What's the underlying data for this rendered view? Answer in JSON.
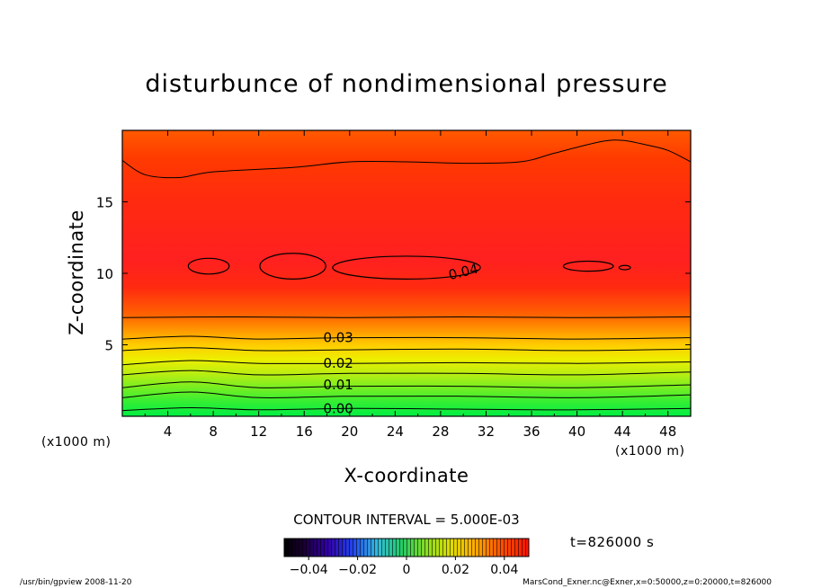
{
  "chart_data": {
    "type": "contour",
    "title": "disturbunce of nondimensional pressure",
    "xlabel": "X-coordinate",
    "ylabel": "Z-coordinate",
    "x_unit_left": "(x1000 m)",
    "x_unit_right": "(x1000 m)",
    "xlim": [
      0,
      50
    ],
    "ylim": [
      0,
      20
    ],
    "x_ticks": [
      4,
      8,
      12,
      16,
      20,
      24,
      28,
      32,
      36,
      40,
      44,
      48
    ],
    "y_ticks": [
      5,
      10,
      15
    ],
    "grid": false,
    "contour_interval_text": "CONTOUR INTERVAL = 5.000E-03",
    "time_label": "t=826000 s",
    "colorbar": {
      "min": -0.05,
      "max": 0.05,
      "tick_values": [
        -0.04,
        -0.02,
        0,
        0.02,
        0.04
      ],
      "tick_labels": [
        "−0.04",
        "−0.02",
        "0",
        "0.02",
        "0.04"
      ]
    },
    "contour_labels": [
      {
        "text": "0.00",
        "x": 19.0,
        "y": 0.55
      },
      {
        "text": "0.01",
        "x": 19.0,
        "y": 2.2
      },
      {
        "text": "0.02",
        "x": 19.0,
        "y": 3.7
      },
      {
        "text": "0.03",
        "x": 19.0,
        "y": 5.5
      },
      {
        "text": "0.04",
        "x": 30.0,
        "y": 10.1
      }
    ],
    "contours": [
      {
        "level": 0.0,
        "points": [
          [
            0,
            0.4
          ],
          [
            6,
            0.6
          ],
          [
            12,
            0.45
          ],
          [
            20,
            0.55
          ],
          [
            30,
            0.5
          ],
          [
            40,
            0.45
          ],
          [
            50,
            0.55
          ]
        ]
      },
      {
        "level": 0.005,
        "points": [
          [
            0,
            1.3
          ],
          [
            6,
            1.7
          ],
          [
            12,
            1.3
          ],
          [
            20,
            1.4
          ],
          [
            30,
            1.4
          ],
          [
            40,
            1.3
          ],
          [
            50,
            1.5
          ]
        ]
      },
      {
        "level": 0.01,
        "points": [
          [
            0,
            2.0
          ],
          [
            6,
            2.4
          ],
          [
            12,
            2.0
          ],
          [
            20,
            2.1
          ],
          [
            30,
            2.1
          ],
          [
            40,
            2.0
          ],
          [
            50,
            2.2
          ]
        ]
      },
      {
        "level": 0.015,
        "points": [
          [
            0,
            2.9
          ],
          [
            6,
            3.2
          ],
          [
            12,
            2.9
          ],
          [
            20,
            3.0
          ],
          [
            30,
            3.0
          ],
          [
            40,
            2.9
          ],
          [
            50,
            3.1
          ]
        ]
      },
      {
        "level": 0.02,
        "points": [
          [
            0,
            3.6
          ],
          [
            6,
            3.9
          ],
          [
            12,
            3.7
          ],
          [
            20,
            3.7
          ],
          [
            30,
            3.75
          ],
          [
            40,
            3.7
          ],
          [
            50,
            3.8
          ]
        ]
      },
      {
        "level": 0.025,
        "points": [
          [
            0,
            4.6
          ],
          [
            6,
            4.8
          ],
          [
            12,
            4.6
          ],
          [
            20,
            4.65
          ],
          [
            30,
            4.7
          ],
          [
            40,
            4.6
          ],
          [
            50,
            4.7
          ]
        ]
      },
      {
        "level": 0.03,
        "points": [
          [
            0,
            5.4
          ],
          [
            6,
            5.6
          ],
          [
            12,
            5.4
          ],
          [
            20,
            5.5
          ],
          [
            30,
            5.5
          ],
          [
            40,
            5.4
          ],
          [
            50,
            5.5
          ]
        ]
      },
      {
        "level": 0.035,
        "points": [
          [
            0,
            6.9
          ],
          [
            10,
            6.95
          ],
          [
            20,
            6.9
          ],
          [
            30,
            6.95
          ],
          [
            40,
            6.9
          ],
          [
            50,
            6.95
          ]
        ]
      },
      {
        "level": 0.035,
        "points": [
          [
            0,
            17.9
          ],
          [
            2,
            16.9
          ],
          [
            5,
            16.7
          ],
          [
            8,
            17.1
          ],
          [
            15,
            17.4
          ],
          [
            20,
            17.8
          ],
          [
            25,
            17.8
          ],
          [
            30,
            17.7
          ],
          [
            35,
            17.8
          ],
          [
            38,
            18.4
          ],
          [
            42,
            19.2
          ],
          [
            44,
            19.3
          ],
          [
            46,
            19.0
          ],
          [
            48,
            18.6
          ],
          [
            50,
            17.8
          ]
        ]
      }
    ],
    "closed_contours": [
      {
        "level": 0.04,
        "cx": 7.6,
        "cy": 10.5,
        "rx": 1.8,
        "ry": 0.55
      },
      {
        "level": 0.04,
        "cx": 15.0,
        "cy": 10.5,
        "rx": 2.9,
        "ry": 0.9
      },
      {
        "level": 0.04,
        "cx": 25.0,
        "cy": 10.4,
        "rx": 6.5,
        "ry": 0.8
      },
      {
        "level": 0.04,
        "cx": 41.0,
        "cy": 10.5,
        "rx": 2.2,
        "ry": 0.35
      },
      {
        "level": 0.04,
        "cx": 44.2,
        "cy": 10.4,
        "rx": 0.5,
        "ry": 0.15
      }
    ]
  },
  "footer": {
    "left": "/usr/bin/gpview  2008-11-20",
    "right": "MarsCond_Exner.nc@Exner,x=0:50000,z=0:20000,t=826000"
  }
}
